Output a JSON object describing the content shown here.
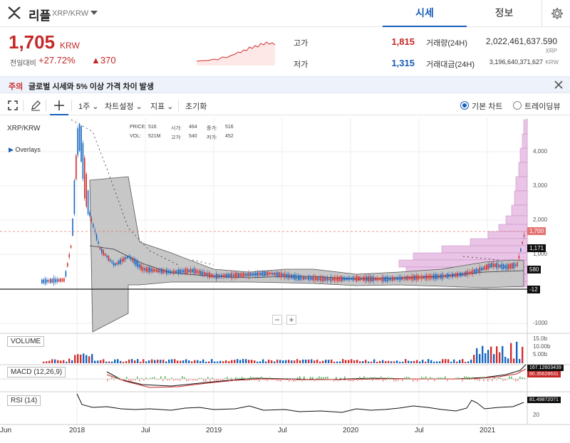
{
  "header": {
    "coin_name": "리플",
    "pair": "XRP/KRW",
    "tabs": [
      {
        "label": "시세",
        "active": true
      },
      {
        "label": "정보",
        "active": false
      }
    ]
  },
  "quote": {
    "price": "1,705",
    "unit": "KRW",
    "change_label": "전일대비",
    "change_rate": "+27.72%",
    "change_amount": "▲370",
    "high_label": "고가",
    "high": "1,815",
    "low_label": "저가",
    "low": "1,315",
    "volume_label": "거래량(24H)",
    "volume": "2,022,461,637.590",
    "volume_unit": "XRP",
    "amount_label": "거래대금(24H)",
    "amount": "3,196,640,371,627",
    "amount_unit": "KRW"
  },
  "notice": {
    "tag": "주의",
    "text": "글로벌 시세와 5% 이상 가격 차이 발생"
  },
  "toolbar": {
    "interval": "1주",
    "chart_settings": "차트설정",
    "indicators": "지표",
    "reset": "초기화",
    "basic_chart": "기본 차트",
    "tradingview": "트레이딩뷰"
  },
  "chart": {
    "symbol": "XRP/KRW",
    "overlays": "Overlays",
    "ohlc": {
      "price_label": "PRICE:",
      "price": "516",
      "open_label": "시가:",
      "open": "464",
      "close_label": "종가:",
      "close": "516",
      "vol_label": "VOL:",
      "vol": "521M",
      "high_label": "고가:",
      "high": "540",
      "low_label": "저가:",
      "low": "452"
    },
    "y_ticks": [
      "4,000",
      "3,000",
      "2,000",
      "1,000",
      "-1000"
    ],
    "price_tags": {
      "current": "1,700",
      "upper_band": "1,171",
      "mid": "580",
      "low": "-12"
    },
    "x_labels": [
      "Jun",
      "2018",
      "Jul",
      "2019",
      "Jul",
      "2020",
      "Jul",
      "2021"
    ],
    "volume_label": "VOLUME",
    "volume_ticks": [
      "15.0b",
      "10.00b",
      "5.00b"
    ],
    "macd_label": "MACD (12,26,9)",
    "macd_values": [
      "167.12603439",
      "80.35628631"
    ],
    "rsi_label": "RSI (14)",
    "rsi_value": "81.49872071",
    "rsi_tick": "20",
    "zoom_out": "−",
    "zoom_in": "+"
  },
  "colors": {
    "up": "#d32f2f",
    "down": "#1565c0",
    "accent": "#1a5dbb",
    "band_fill": "#bdbdbd",
    "profile": "#d9a6d6"
  }
}
